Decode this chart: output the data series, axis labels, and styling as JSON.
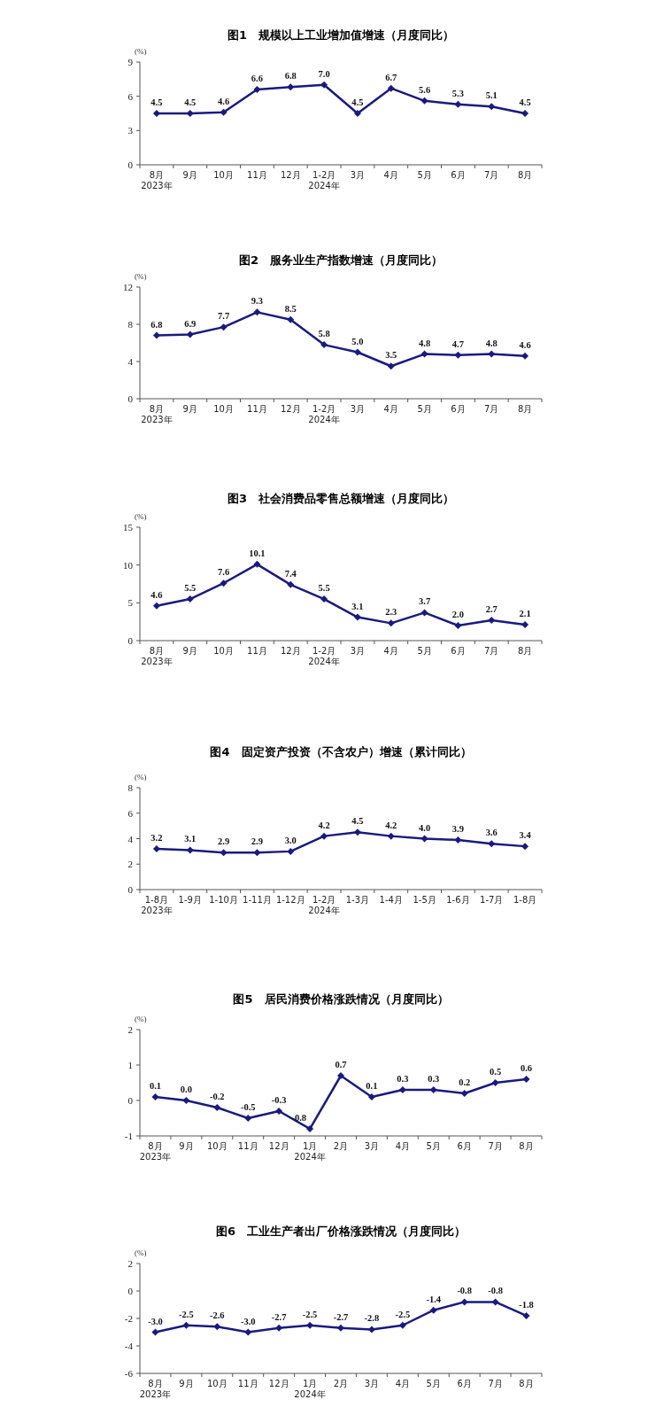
{
  "chart_data": [
    {
      "type": "line",
      "title": "图1　规模以上工业增加值增速（月度同比）",
      "ylabel": "(%)",
      "categories": [
        "8月\n2023年",
        "9月",
        "10月",
        "11月",
        "12月",
        "1-2月\n2024年",
        "3月",
        "4月",
        "5月",
        "6月",
        "7月",
        "8月"
      ],
      "ylim": [
        0,
        9
      ],
      "yticks": [
        0,
        3,
        6,
        9
      ],
      "marker": "diamond",
      "series": [
        {
          "color": "#1a1a7e",
          "values": [
            4.5,
            4.5,
            4.6,
            6.6,
            6.8,
            7.0,
            4.5,
            6.7,
            5.6,
            5.3,
            5.1,
            4.5
          ],
          "value_labels": [
            "4.5",
            "4.5",
            "4.6",
            "6.6",
            "6.8",
            "7.0",
            "4.5",
            "6.7",
            "5.6",
            "5.3",
            "5.1",
            "4.5"
          ]
        }
      ]
    },
    {
      "type": "line",
      "title": "图2　服务业生产指数增速（月度同比）",
      "ylabel": "(%)",
      "categories": [
        "8月\n2023年",
        "9月",
        "10月",
        "11月",
        "12月",
        "1-2月\n2024年",
        "3月",
        "4月",
        "5月",
        "6月",
        "7月",
        "8月"
      ],
      "ylim": [
        0,
        12
      ],
      "yticks": [
        0,
        4,
        8,
        12
      ],
      "marker": "diamond",
      "series": [
        {
          "color": "#1a1a7e",
          "values": [
            6.8,
            6.9,
            7.7,
            9.3,
            8.5,
            5.8,
            5.0,
            3.5,
            4.8,
            4.7,
            4.8,
            4.6
          ],
          "value_labels": [
            "6.8",
            "6.9",
            "7.7",
            "9.3",
            "8.5",
            "5.8",
            "5.0",
            "3.5",
            "4.8",
            "4.7",
            "4.8",
            "4.6"
          ]
        }
      ]
    },
    {
      "type": "line",
      "title": "图3　社会消费品零售总额增速（月度同比）",
      "ylabel": "(%)",
      "categories": [
        "8月\n2023年",
        "9月",
        "10月",
        "11月",
        "12月",
        "1-2月\n2024年",
        "3月",
        "4月",
        "5月",
        "6月",
        "7月",
        "8月"
      ],
      "ylim": [
        0,
        15
      ],
      "yticks": [
        0,
        5,
        10,
        15
      ],
      "marker": "diamond",
      "series": [
        {
          "color": "#1a1a7e",
          "values": [
            4.6,
            5.5,
            7.6,
            10.1,
            7.4,
            5.5,
            3.1,
            2.3,
            3.7,
            2.0,
            2.7,
            2.1
          ],
          "value_labels": [
            "4.6",
            "5.5",
            "7.6",
            "10.1",
            "7.4",
            "5.5",
            "3.1",
            "2.3",
            "3.7",
            "2.0",
            "2.7",
            "2.1"
          ]
        }
      ]
    },
    {
      "type": "line",
      "title": "图4　固定资产投资（不含农户）增速（累计同比）",
      "ylabel": "(%)",
      "categories": [
        "1-8月\n2023年",
        "1-9月",
        "1-10月",
        "1-11月",
        "1-12月",
        "1-2月\n2024年",
        "1-3月",
        "1-4月",
        "1-5月",
        "1-6月",
        "1-7月",
        "1-8月"
      ],
      "ylim": [
        0,
        8
      ],
      "yticks": [
        0,
        2,
        4,
        6,
        8
      ],
      "marker": "diamond",
      "series": [
        {
          "color": "#1a1a7e",
          "values": [
            3.2,
            3.1,
            2.9,
            2.9,
            3.0,
            4.2,
            4.5,
            4.2,
            4.0,
            3.9,
            3.6,
            3.4
          ],
          "value_labels": [
            "3.2",
            "3.1",
            "2.9",
            "2.9",
            "3.0",
            "4.2",
            "4.5",
            "4.2",
            "4.0",
            "3.9",
            "3.6",
            "3.4"
          ]
        }
      ]
    },
    {
      "type": "line",
      "title": "图5　居民消费价格涨跌情况（月度同比）",
      "ylabel": "(%)",
      "categories": [
        "8月\n2023年",
        "9月",
        "10月",
        "11月",
        "12月",
        "1月\n2024年",
        "2月",
        "3月",
        "4月",
        "5月",
        "6月",
        "7月",
        "8月"
      ],
      "ylim": [
        -1,
        2
      ],
      "yticks": [
        -1,
        0,
        1,
        2
      ],
      "marker": "diamond",
      "series": [
        {
          "color": "#1a1a7e",
          "values": [
            0.1,
            0.0,
            -0.2,
            -0.5,
            -0.3,
            -0.8,
            0.7,
            0.1,
            0.3,
            0.3,
            0.2,
            0.5,
            0.6
          ],
          "value_labels": [
            "0.1",
            "0.0",
            "-0.2",
            "-0.5",
            "-0.3",
            "-0.8",
            "0.7",
            "0.1",
            "0.3",
            "0.3",
            "0.2",
            "0.5",
            "0.6"
          ]
        }
      ]
    },
    {
      "type": "line",
      "title": "图6　工业生产者出厂价格涨跌情况（月度同比）",
      "ylabel": "(%)",
      "categories": [
        "8月\n2023年",
        "9月",
        "10月",
        "11月",
        "12月",
        "1月\n2024年",
        "2月",
        "3月",
        "4月",
        "5月",
        "6月",
        "7月",
        "8月"
      ],
      "ylim": [
        -6,
        2
      ],
      "yticks": [
        -6,
        -4,
        -2,
        0,
        2
      ],
      "marker": "diamond",
      "series": [
        {
          "color": "#1a1a7e",
          "values": [
            -3.0,
            -2.5,
            -2.6,
            -3.0,
            -2.7,
            -2.5,
            -2.7,
            -2.8,
            -2.5,
            -1.4,
            -0.8,
            -0.8,
            -1.8
          ],
          "value_labels": [
            "-3.0",
            "-2.5",
            "-2.6",
            "-3.0",
            "-2.7",
            "-2.5",
            "-2.7",
            "-2.8",
            "-2.5",
            "-1.4",
            "-0.8",
            "-0.8",
            "-1.8"
          ]
        }
      ]
    }
  ]
}
